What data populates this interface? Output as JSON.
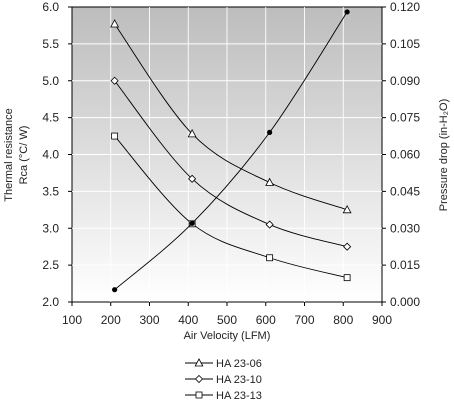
{
  "chart_data": {
    "type": "line",
    "xlabel": "Air Velocity (LFM)",
    "ylabel_left_line1": "Thermal resistance",
    "ylabel_left_line2": "Rca (°C/ W)",
    "ylabel_right": "Pressure drop  (in-H₂O)",
    "xlim": [
      100,
      900
    ],
    "xticks": [
      100,
      200,
      300,
      400,
      500,
      600,
      700,
      800,
      900
    ],
    "ylim_left": [
      2.0,
      6.0
    ],
    "yticks_left": [
      "2.0",
      "2.5",
      "3.0",
      "3.5",
      "4.0",
      "4.5",
      "5.0",
      "5.5",
      "6.0"
    ],
    "ylim_right": [
      0,
      0.12
    ],
    "yticks_right": [
      "0.000",
      "0.015",
      "0.030",
      "0.045",
      "0.060",
      "0.075",
      "0.090",
      "0.105",
      "0.120"
    ],
    "grid": true,
    "legend_position": "bottom",
    "series": [
      {
        "name": "HA 23-06",
        "axis": "left",
        "marker": "triangle",
        "x": [
          200,
          400,
          600,
          800
        ],
        "values": [
          5.77,
          4.28,
          3.62,
          3.25
        ]
      },
      {
        "name": "HA 23-10",
        "axis": "left",
        "marker": "diamond",
        "x": [
          200,
          400,
          600,
          800
        ],
        "values": [
          5.0,
          3.67,
          3.05,
          2.75
        ]
      },
      {
        "name": "HA 23-13",
        "axis": "left",
        "marker": "square",
        "x": [
          200,
          400,
          600,
          800
        ],
        "values": [
          4.25,
          3.06,
          2.6,
          2.33
        ]
      },
      {
        "axis": "right",
        "marker": "dot",
        "x": [
          200,
          400,
          600,
          800
        ],
        "values": [
          0.005,
          0.032,
          0.069,
          0.118
        ]
      }
    ]
  }
}
